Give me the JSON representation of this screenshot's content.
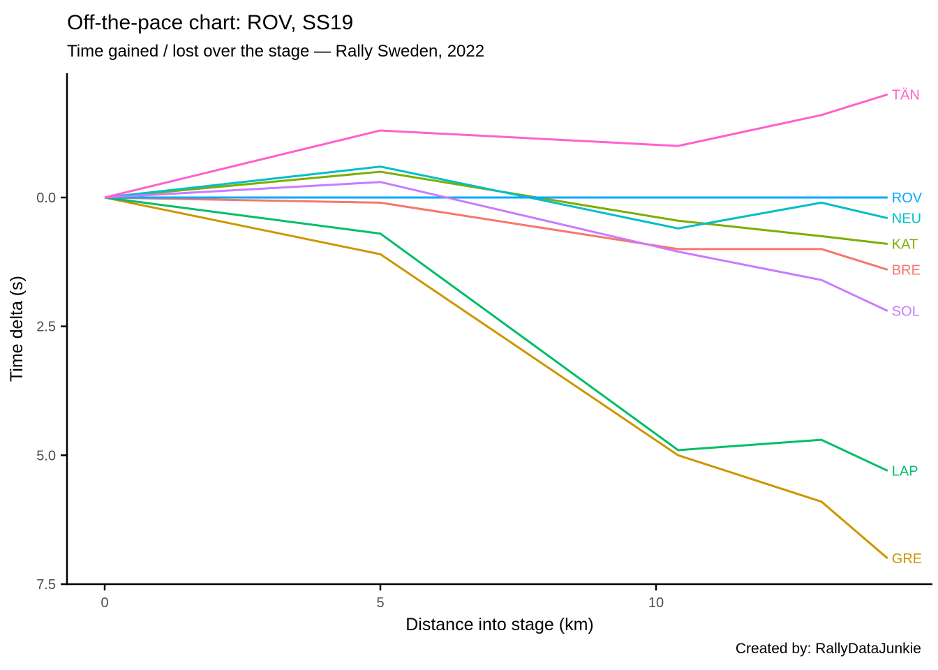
{
  "chart_data": {
    "type": "line",
    "title": "Off-the-pace chart: ROV, SS19",
    "subtitle": "Time gained / lost over the stage — Rally Sweden, 2022",
    "caption": "Created by: RallyDataJunkie",
    "xlabel": "Distance into stage (km)",
    "ylabel": "Time delta (s)",
    "x": [
      0,
      5.0,
      10.4,
      13.0,
      14.2
    ],
    "series": [
      {
        "name": "BRE",
        "color": "#F8766D",
        "values": [
          0,
          0.1,
          1.0,
          1.0,
          1.4
        ]
      },
      {
        "name": "GRE",
        "color": "#CD9600",
        "values": [
          0,
          1.1,
          5.0,
          5.9,
          7.0
        ]
      },
      {
        "name": "KAT",
        "color": "#7CAE00",
        "values": [
          0,
          -0.5,
          0.45,
          0.75,
          0.9
        ]
      },
      {
        "name": "LAP",
        "color": "#00BE67",
        "values": [
          0,
          0.7,
          4.9,
          4.7,
          5.3
        ]
      },
      {
        "name": "NEU",
        "color": "#00BFC4",
        "values": [
          0,
          -0.6,
          0.6,
          0.1,
          0.4
        ]
      },
      {
        "name": "ROV",
        "color": "#00A9FF",
        "values": [
          0,
          0.0,
          0.0,
          0.0,
          0.0
        ]
      },
      {
        "name": "SOL",
        "color": "#C77CFF",
        "values": [
          0,
          -0.3,
          1.05,
          1.6,
          2.2
        ]
      },
      {
        "name": "TÄN",
        "color": "#FF61CC",
        "values": [
          0,
          -1.3,
          -1.0,
          -1.6,
          -2.0
        ]
      }
    ],
    "x_ticks": [
      {
        "value": 0,
        "label": "0"
      },
      {
        "value": 5,
        "label": "5"
      },
      {
        "value": 10,
        "label": "10"
      }
    ],
    "y_ticks": [
      {
        "value": 0.0,
        "label": "0.0"
      },
      {
        "value": 2.5,
        "label": "2.5"
      },
      {
        "value": 5.0,
        "label": "5.0"
      },
      {
        "value": 7.5,
        "label": "7.5"
      }
    ],
    "y_axis_reversed": true,
    "grid": false,
    "legend_position": "line-end-labels",
    "x_range_km": [
      0,
      14.2
    ],
    "y_range_s": [
      -2.2,
      7.5
    ]
  },
  "style": {
    "tick_text_color": "#4d4d4d",
    "axis_line_color": "#000000",
    "background_color": "#ffffff"
  }
}
